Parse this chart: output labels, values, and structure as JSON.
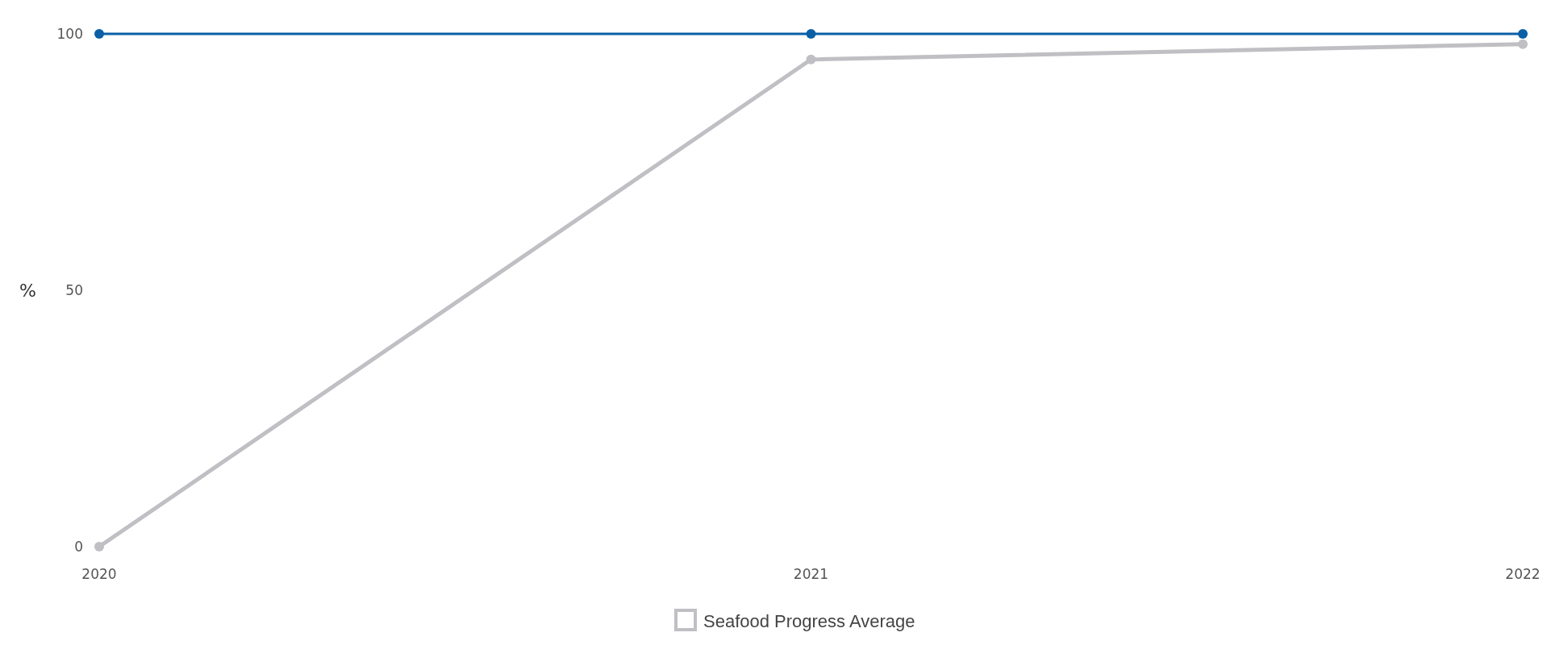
{
  "chart_data": {
    "type": "line",
    "ylabel": "%",
    "categories": [
      "2020",
      "2021",
      "2022"
    ],
    "series": [
      {
        "color": "#0a5fa6",
        "values": [
          100,
          100,
          100
        ]
      },
      {
        "name": "Seafood Progress Average",
        "color": "#bfbfc4",
        "values": [
          0,
          95,
          98
        ]
      }
    ],
    "ylim": [
      0,
      100
    ],
    "yticks": [
      0,
      50,
      100
    ],
    "grid": false,
    "legend": "bottom",
    "marker": "circle",
    "line_style": "solid"
  }
}
